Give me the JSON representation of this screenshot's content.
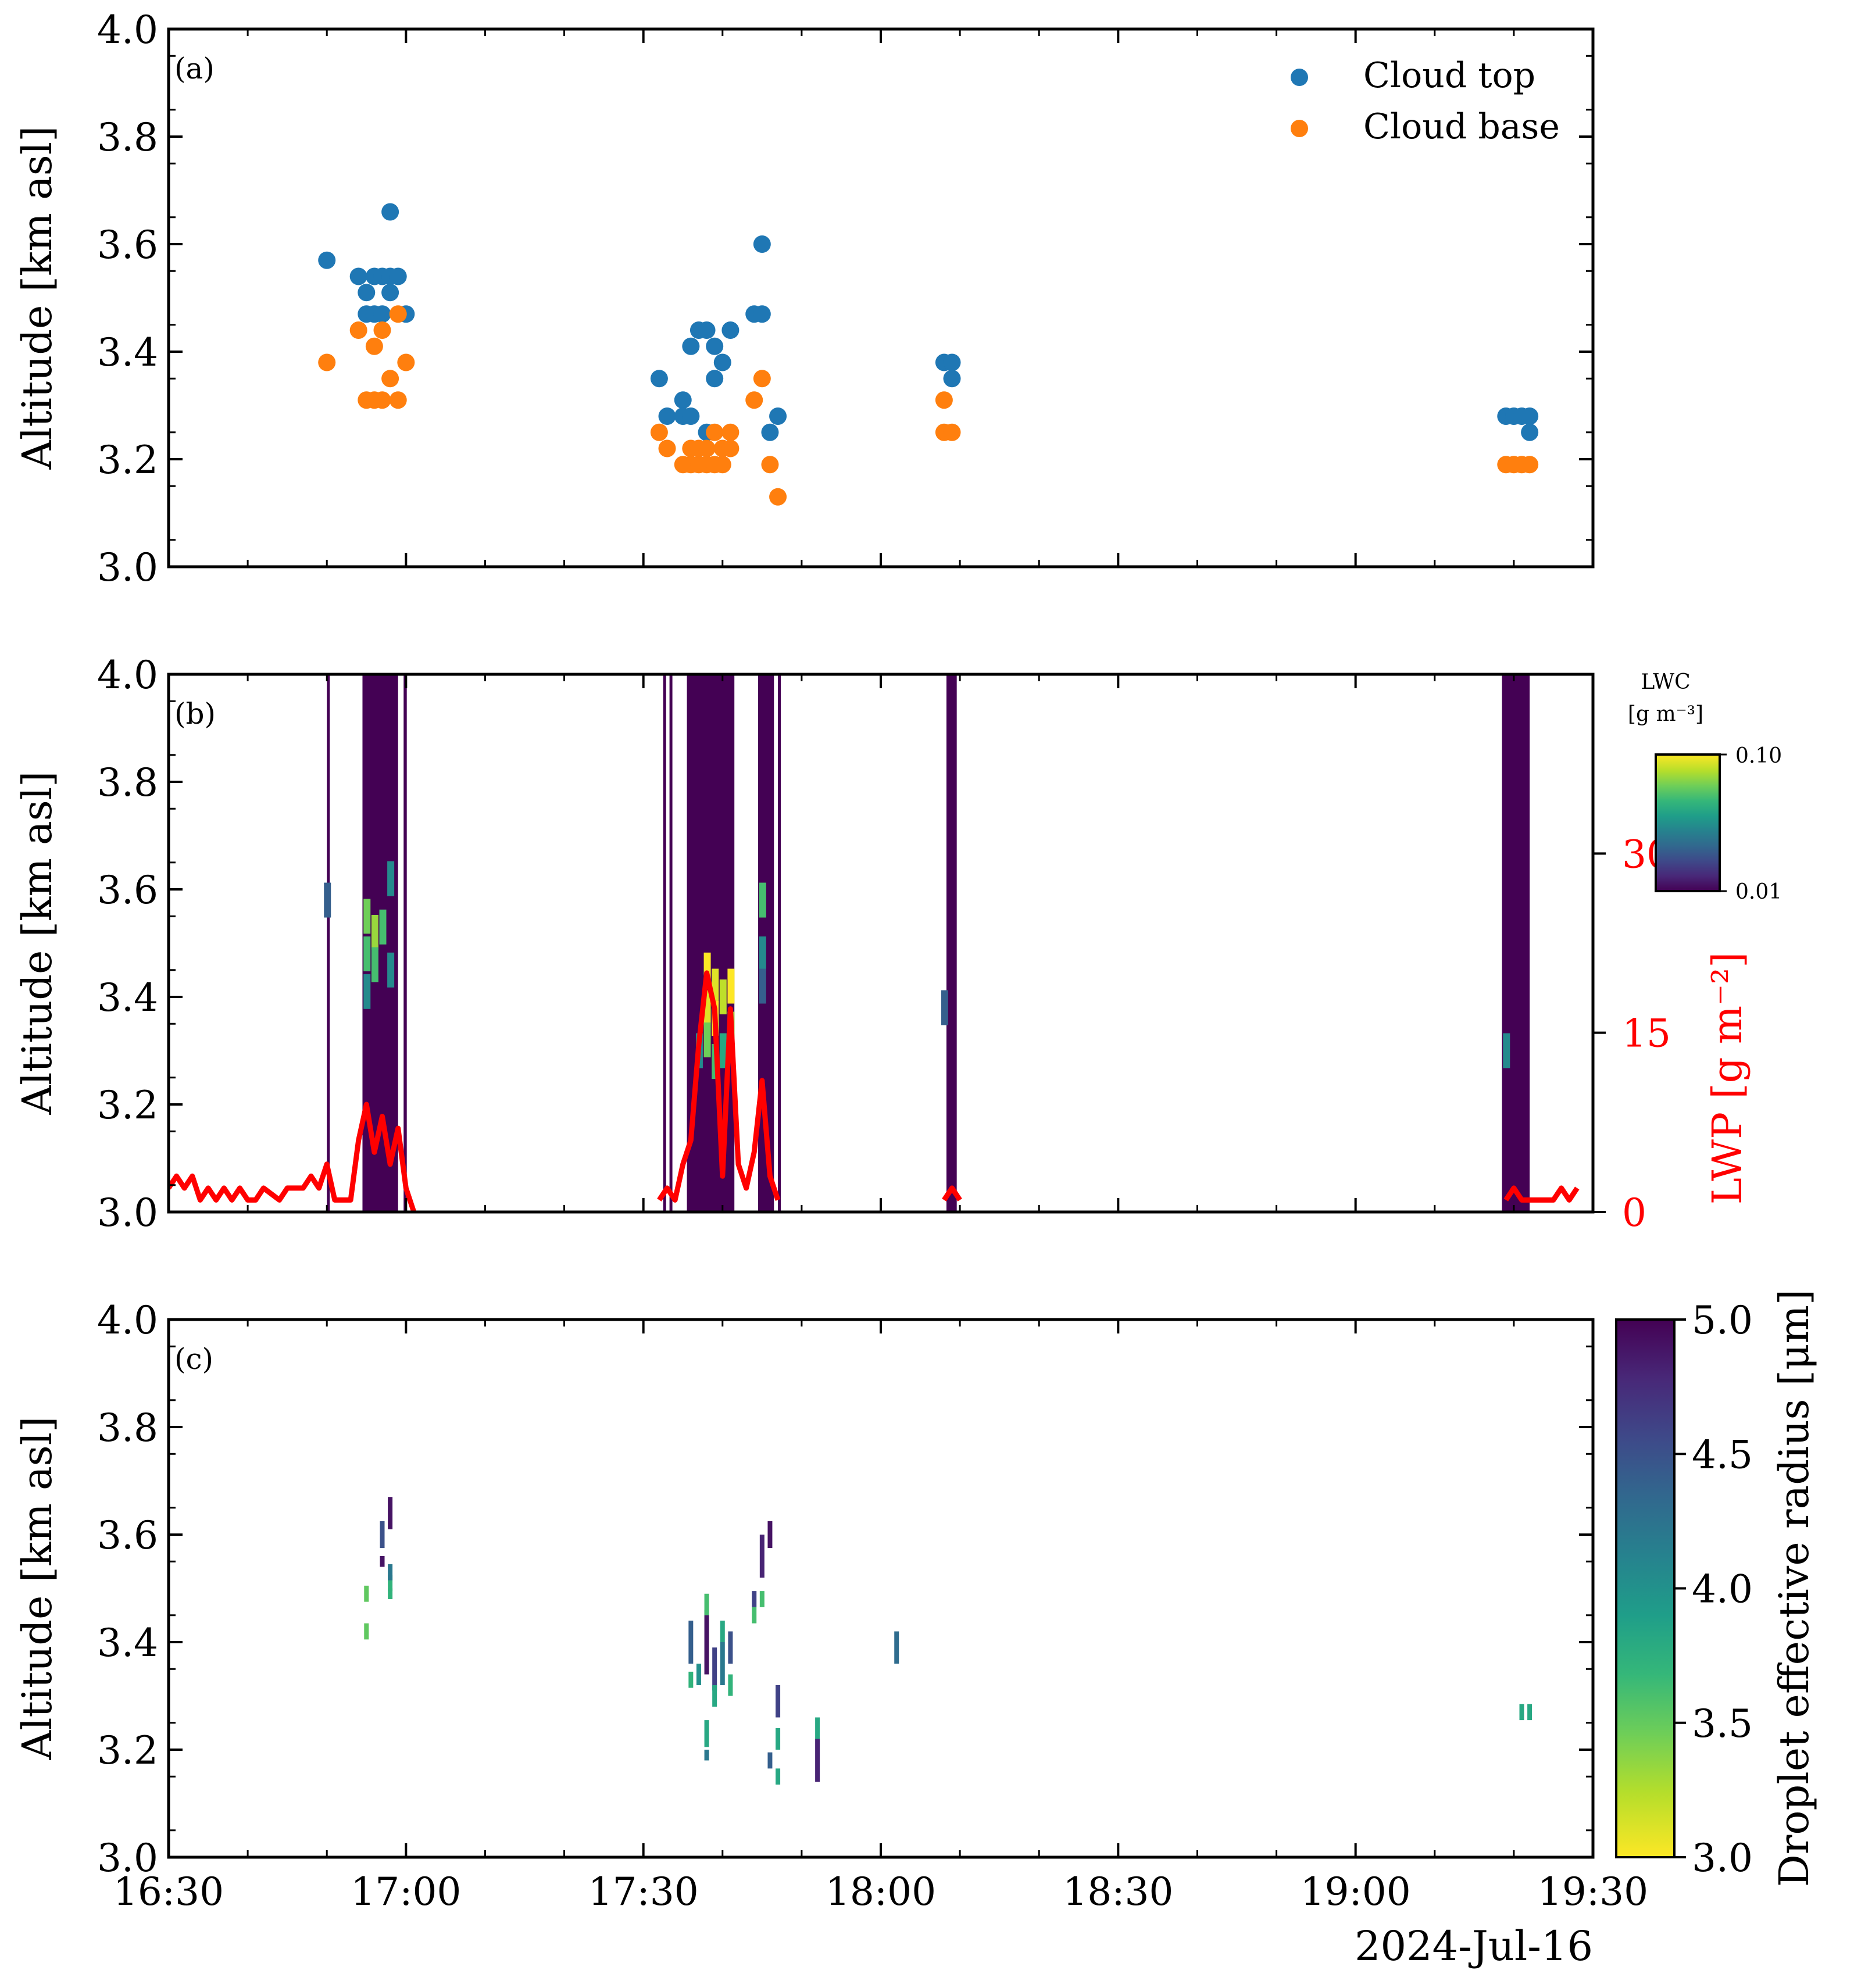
{
  "colors": {
    "cloud_top": "#1f77b4",
    "cloud_base": "#ff7f0e",
    "lwp": "#ff0000",
    "cloud_mask": "#440154",
    "viridis": [
      "#440154",
      "#482878",
      "#3e4989",
      "#31688e",
      "#26828e",
      "#1f9e89",
      "#35b779",
      "#6ece58",
      "#b5de2b",
      "#fde725"
    ]
  },
  "figure": {
    "date_label": "2024-Jul-16",
    "x_ticks": [
      "16:30",
      "17:00",
      "17:30",
      "18:00",
      "18:30",
      "19:00",
      "19:30"
    ],
    "y_ticks": [
      "3.0",
      "3.2",
      "3.4",
      "3.6",
      "3.8",
      "4.0"
    ],
    "y_label": "Altitude [km asl]"
  },
  "panels": {
    "a": {
      "label": "(a)",
      "legend": [
        {
          "name": "Cloud top",
          "color": "#1f77b4"
        },
        {
          "name": "Cloud base",
          "color": "#ff7f0e"
        }
      ]
    },
    "b": {
      "label": "(b)",
      "cbar_title_line1": "LWC",
      "cbar_title_line2": "[g m⁻³]",
      "cbar_ticks": [
        "0.10",
        "0.01"
      ],
      "lwp_label": "LWP [g m⁻²]",
      "lwp_ticks": [
        "30",
        "15",
        "0"
      ]
    },
    "c": {
      "label": "(c)",
      "cbar_label": "Droplet effective radius [μm]",
      "cbar_ticks": [
        "5.0",
        "4.5",
        "4.0",
        "3.5",
        "3.0"
      ]
    }
  },
  "chart_data": [
    {
      "type": "scatter",
      "panel": "a",
      "xlabel": "",
      "ylabel": "Altitude [km asl]",
      "xlim": [
        "16:30",
        "19:30"
      ],
      "ylim": [
        3.0,
        4.0
      ],
      "series": [
        {
          "name": "Cloud top",
          "points": [
            [
              "16:50",
              3.57
            ],
            [
              "16:54",
              3.54
            ],
            [
              "16:55",
              3.51
            ],
            [
              "16:55",
              3.47
            ],
            [
              "16:56",
              3.54
            ],
            [
              "16:56",
              3.47
            ],
            [
              "16:57",
              3.54
            ],
            [
              "16:57",
              3.47
            ],
            [
              "16:58",
              3.51
            ],
            [
              "16:58",
              3.54
            ],
            [
              "16:58",
              3.66
            ],
            [
              "16:59",
              3.54
            ],
            [
              "17:00",
              3.47
            ],
            [
              "17:32",
              3.35
            ],
            [
              "17:33",
              3.28
            ],
            [
              "17:35",
              3.31
            ],
            [
              "17:35",
              3.28
            ],
            [
              "17:36",
              3.41
            ],
            [
              "17:36",
              3.28
            ],
            [
              "17:37",
              3.44
            ],
            [
              "17:38",
              3.44
            ],
            [
              "17:38",
              3.25
            ],
            [
              "17:39",
              3.35
            ],
            [
              "17:39",
              3.41
            ],
            [
              "17:40",
              3.38
            ],
            [
              "17:41",
              3.44
            ],
            [
              "17:44",
              3.47
            ],
            [
              "17:45",
              3.47
            ],
            [
              "17:45",
              3.6
            ],
            [
              "17:46",
              3.25
            ],
            [
              "17:47",
              3.28
            ],
            [
              "18:08",
              3.38
            ],
            [
              "18:09",
              3.35
            ],
            [
              "18:09",
              3.38
            ],
            [
              "19:19",
              3.28
            ],
            [
              "19:20",
              3.28
            ],
            [
              "19:21",
              3.28
            ],
            [
              "19:22",
              3.28
            ],
            [
              "19:22",
              3.25
            ]
          ]
        },
        {
          "name": "Cloud base",
          "points": [
            [
              "16:50",
              3.38
            ],
            [
              "16:54",
              3.44
            ],
            [
              "16:55",
              3.31
            ],
            [
              "16:56",
              3.31
            ],
            [
              "16:56",
              3.41
            ],
            [
              "16:57",
              3.44
            ],
            [
              "16:57",
              3.31
            ],
            [
              "16:58",
              3.35
            ],
            [
              "16:59",
              3.31
            ],
            [
              "16:59",
              3.47
            ],
            [
              "17:00",
              3.38
            ],
            [
              "17:32",
              3.25
            ],
            [
              "17:33",
              3.22
            ],
            [
              "17:35",
              3.19
            ],
            [
              "17:36",
              3.22
            ],
            [
              "17:36",
              3.19
            ],
            [
              "17:37",
              3.22
            ],
            [
              "17:37",
              3.19
            ],
            [
              "17:38",
              3.22
            ],
            [
              "17:38",
              3.19
            ],
            [
              "17:39",
              3.25
            ],
            [
              "17:39",
              3.19
            ],
            [
              "17:40",
              3.22
            ],
            [
              "17:40",
              3.19
            ],
            [
              "17:41",
              3.25
            ],
            [
              "17:41",
              3.22
            ],
            [
              "17:44",
              3.31
            ],
            [
              "17:45",
              3.35
            ],
            [
              "17:46",
              3.19
            ],
            [
              "17:47",
              3.13
            ],
            [
              "18:08",
              3.31
            ],
            [
              "18:08",
              3.25
            ],
            [
              "18:09",
              3.25
            ],
            [
              "19:19",
              3.19
            ],
            [
              "19:20",
              3.19
            ],
            [
              "19:21",
              3.19
            ],
            [
              "19:22",
              3.19
            ]
          ]
        }
      ]
    },
    {
      "type": "heatmap",
      "panel": "b",
      "ylabel": "Altitude [km asl]",
      "xlim": [
        "16:30",
        "19:30"
      ],
      "ylim": [
        3.0,
        4.0
      ],
      "colorbar": {
        "title": "LWC [g m⁻³]",
        "range": [
          0.01,
          0.1
        ],
        "scale": "log",
        "cmap": "viridis"
      },
      "cloud_columns": [
        [
          "16:50",
          "16:50.3"
        ],
        [
          "16:54.5",
          "16:59"
        ],
        [
          "16:59.7",
          "17:00.1"
        ],
        [
          "17:32.5",
          "17:32.8"
        ],
        [
          "17:33.3",
          "17:33.6"
        ],
        [
          "17:35.5",
          "17:41.5"
        ],
        [
          "17:44.5",
          "17:46.5"
        ],
        [
          "17:47",
          "17:47.3"
        ],
        [
          "18:08.3",
          "18:09.6"
        ],
        [
          "19:18.5",
          "19:22"
        ]
      ],
      "lwc_cells": [
        [
          "16:50",
          3.58,
          0.02
        ],
        [
          "16:55",
          3.55,
          0.06
        ],
        [
          "16:55",
          3.48,
          0.05
        ],
        [
          "16:55",
          3.41,
          0.03
        ],
        [
          "16:56",
          3.52,
          0.07
        ],
        [
          "16:56",
          3.46,
          0.05
        ],
        [
          "16:57",
          3.53,
          0.05
        ],
        [
          "16:58",
          3.62,
          0.03
        ],
        [
          "16:58",
          3.45,
          0.03
        ],
        [
          "17:38",
          3.45,
          0.1
        ],
        [
          "17:38",
          3.38,
          0.09
        ],
        [
          "17:38",
          3.32,
          0.06
        ],
        [
          "17:39",
          3.42,
          0.09
        ],
        [
          "17:39",
          3.36,
          0.1
        ],
        [
          "17:39",
          3.28,
          0.05
        ],
        [
          "17:40",
          3.4,
          0.08
        ],
        [
          "17:40",
          3.3,
          0.04
        ],
        [
          "17:41",
          3.42,
          0.1
        ],
        [
          "17:41",
          3.34,
          0.07
        ],
        [
          "17:37",
          3.3,
          0.03
        ],
        [
          "17:45",
          3.58,
          0.05
        ],
        [
          "17:45",
          3.48,
          0.03
        ],
        [
          "17:45",
          3.42,
          0.02
        ],
        [
          "18:08",
          3.38,
          0.02
        ],
        [
          "19:19",
          3.3,
          0.03
        ]
      ],
      "lwp_series": {
        "name": "LWP",
        "unit": "g m⁻²",
        "ylim": [
          0,
          45
        ],
        "points": [
          [
            "16:30",
            2
          ],
          [
            "16:31",
            3
          ],
          [
            "16:32",
            2
          ],
          [
            "16:33",
            3
          ],
          [
            "16:34",
            1
          ],
          [
            "16:35",
            2
          ],
          [
            "16:36",
            1
          ],
          [
            "16:37",
            2
          ],
          [
            "16:38",
            1
          ],
          [
            "16:39",
            2
          ],
          [
            "16:40",
            1
          ],
          [
            "16:41",
            1
          ],
          [
            "16:42",
            2
          ],
          [
            "16:44",
            1
          ],
          [
            "16:45",
            2
          ],
          [
            "16:47",
            2
          ],
          [
            "16:48",
            3
          ],
          [
            "16:49",
            2
          ],
          [
            "16:50",
            4
          ],
          [
            "16:51",
            1
          ],
          [
            "16:53",
            1
          ],
          [
            "16:54",
            6
          ],
          [
            "16:55",
            9
          ],
          [
            "16:56",
            5
          ],
          [
            "16:57",
            8
          ],
          [
            "16:58",
            4
          ],
          [
            "16:59",
            7
          ],
          [
            "17:00",
            2
          ],
          [
            "17:01",
            0
          ],
          [
            "17:32",
            1
          ],
          [
            "17:33",
            2
          ],
          [
            "17:34",
            1
          ],
          [
            "17:35",
            4
          ],
          [
            "17:36",
            6
          ],
          [
            "17:37",
            14
          ],
          [
            "17:38",
            20
          ],
          [
            "17:39",
            17
          ],
          [
            "17:40",
            3
          ],
          [
            "17:41",
            17
          ],
          [
            "17:42",
            4
          ],
          [
            "17:43",
            2
          ],
          [
            "17:44",
            5
          ],
          [
            "17:45",
            11
          ],
          [
            "17:46",
            3
          ],
          [
            "17:47",
            1
          ],
          [
            "18:08",
            1
          ],
          [
            "18:09",
            2
          ],
          [
            "18:10",
            1
          ],
          [
            "19:19",
            1
          ],
          [
            "19:20",
            2
          ],
          [
            "19:21",
            1
          ],
          [
            "19:23",
            1
          ],
          [
            "19:25",
            1
          ],
          [
            "19:26",
            2
          ],
          [
            "19:27",
            1
          ],
          [
            "19:28",
            2
          ]
        ]
      }
    },
    {
      "type": "heatmap",
      "panel": "c",
      "ylabel": "Altitude [km asl]",
      "xlabel": "",
      "xlim": [
        "16:30",
        "19:30"
      ],
      "ylim": [
        3.0,
        4.0
      ],
      "colorbar": {
        "title": "Droplet effective radius [μm]",
        "range": [
          3.0,
          5.0
        ],
        "cmap": "viridis_r"
      },
      "cells": [
        [
          "16:55",
          3.49,
          3.5,
          0.03
        ],
        [
          "16:55",
          3.42,
          3.5,
          0.03
        ],
        [
          "16:57",
          3.6,
          4.5,
          0.05
        ],
        [
          "16:57",
          3.55,
          4.9,
          0.02
        ],
        [
          "16:58",
          3.51,
          3.7,
          0.03
        ],
        [
          "16:58",
          3.64,
          4.9,
          0.06
        ],
        [
          "16:58",
          3.53,
          4.2,
          0.03
        ],
        [
          "16:58",
          3.49,
          3.7,
          0.02
        ],
        [
          "17:36",
          3.33,
          3.7,
          0.03
        ],
        [
          "17:36",
          3.4,
          4.4,
          0.08
        ],
        [
          "17:37",
          3.34,
          4.0,
          0.04
        ],
        [
          "17:38",
          3.4,
          4.9,
          0.12
        ],
        [
          "17:38",
          3.47,
          3.6,
          0.04
        ],
        [
          "17:39",
          3.35,
          4.6,
          0.08
        ],
        [
          "17:39",
          3.3,
          3.8,
          0.04
        ],
        [
          "17:38",
          3.23,
          3.8,
          0.05
        ],
        [
          "17:38",
          3.19,
          4.2,
          0.02
        ],
        [
          "17:40",
          3.36,
          4.2,
          0.08
        ],
        [
          "17:40",
          3.42,
          3.8,
          0.04
        ],
        [
          "17:41",
          3.39,
          4.5,
          0.06
        ],
        [
          "17:41",
          3.32,
          3.7,
          0.04
        ],
        [
          "17:44",
          3.48,
          4.6,
          0.03
        ],
        [
          "17:44",
          3.45,
          3.6,
          0.03
        ],
        [
          "17:45",
          3.48,
          3.6,
          0.03
        ],
        [
          "17:45",
          3.56,
          4.8,
          0.08
        ],
        [
          "17:46",
          3.6,
          4.9,
          0.05
        ],
        [
          "17:47",
          3.29,
          4.6,
          0.06
        ],
        [
          "17:47",
          3.22,
          3.8,
          0.04
        ],
        [
          "17:46",
          3.18,
          4.4,
          0.03
        ],
        [
          "17:47",
          3.15,
          3.8,
          0.03
        ],
        [
          "17:52",
          3.18,
          4.8,
          0.08
        ],
        [
          "17:52",
          3.24,
          3.8,
          0.04
        ],
        [
          "18:02",
          3.39,
          4.3,
          0.06
        ],
        [
          "19:21",
          3.27,
          3.8,
          0.03
        ],
        [
          "19:22",
          3.27,
          3.8,
          0.03
        ]
      ]
    }
  ]
}
